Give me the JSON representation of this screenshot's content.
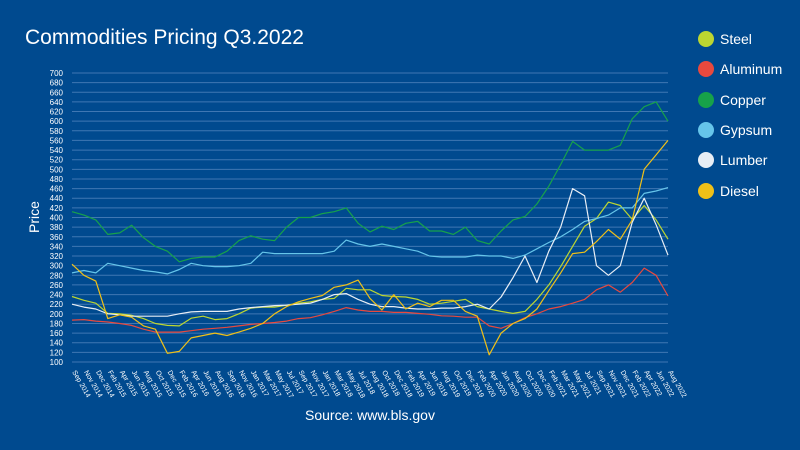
{
  "chart_data": {
    "type": "line",
    "title": "Commodities Pricing Q3.2022",
    "source": "Source: www.bls.gov",
    "ylabel": "Price",
    "xlabel": "",
    "ylim": [
      100,
      700
    ],
    "yticks": [
      100,
      120,
      140,
      160,
      180,
      200,
      220,
      240,
      260,
      280,
      300,
      320,
      340,
      360,
      380,
      400,
      420,
      440,
      460,
      480,
      500,
      520,
      540,
      560,
      580,
      600,
      620,
      640,
      660,
      680,
      700
    ],
    "grid": true,
    "legend_position": "right",
    "x": [
      "Sep 2014",
      "Nov 2014",
      "Dec 2014",
      "Feb 2015",
      "Apr 2015",
      "Jun 2015",
      "Aug 2015",
      "Oct 2015",
      "Dec 2015",
      "Feb 2016",
      "Apr 2016",
      "Jun 2016",
      "Aug 2016",
      "Sep 2016",
      "Nov 2016",
      "Jan 2017",
      "Mar 2017",
      "May 2017",
      "Jul 2017",
      "Sep 2017",
      "Nov 2017",
      "Jan 2018",
      "Mar 2018",
      "May 2018",
      "Jul 2018",
      "Aug 2018",
      "Oct 2018",
      "Dec 2018",
      "Feb 2019",
      "Apr 2019",
      "Jun 2019",
      "Aug 2019",
      "Oct 2019",
      "Dec 2019",
      "Feb 2020",
      "Apr 2020",
      "Jun 2020",
      "Aug 2020",
      "Oct 2020",
      "Dec 2020",
      "Feb 2021",
      "Mar 2021",
      "May 2021",
      "Jul 2021",
      "Sep 2021",
      "Nov 2021",
      "Dec 2021",
      "Feb 2022",
      "Apr 2022",
      "Jun 2022",
      "Aug 2022"
    ],
    "series": [
      {
        "name": "Steel",
        "color": "#bcd631",
        "values": [
          236,
          228,
          222,
          201,
          200,
          197,
          190,
          180,
          176,
          175,
          191,
          195,
          188,
          190,
          200,
          212,
          214,
          214,
          218,
          222,
          225,
          230,
          232,
          253,
          250,
          250,
          238,
          236,
          235,
          230,
          220,
          222,
          226,
          230,
          215,
          210,
          205,
          201,
          205,
          230,
          260,
          298,
          340,
          382,
          398,
          432,
          425,
          396,
          425,
          395,
          355
        ]
      },
      {
        "name": "Aluminum",
        "color": "#e8493e",
        "values": [
          187,
          188,
          185,
          183,
          180,
          176,
          168,
          162,
          162,
          162,
          165,
          168,
          170,
          172,
          175,
          178,
          180,
          182,
          185,
          190,
          192,
          198,
          205,
          213,
          208,
          205,
          205,
          203,
          203,
          201,
          199,
          196,
          195,
          193,
          193,
          175,
          170,
          180,
          192,
          200,
          210,
          215,
          222,
          230,
          250,
          260,
          245,
          265,
          295,
          280,
          237
        ]
      },
      {
        "name": "Copper",
        "color": "#17a24a",
        "values": [
          412,
          405,
          395,
          365,
          368,
          384,
          358,
          340,
          330,
          308,
          315,
          318,
          318,
          330,
          352,
          362,
          355,
          352,
          380,
          400,
          400,
          408,
          412,
          420,
          388,
          370,
          382,
          375,
          388,
          392,
          372,
          372,
          365,
          380,
          352,
          345,
          372,
          395,
          402,
          428,
          465,
          510,
          558,
          540,
          540,
          540,
          550,
          605,
          630,
          640,
          600
        ]
      },
      {
        "name": "Gypsum",
        "color": "#66c5ea",
        "values": [
          285,
          290,
          285,
          305,
          300,
          295,
          290,
          287,
          283,
          292,
          305,
          300,
          298,
          298,
          300,
          305,
          328,
          325,
          325,
          325,
          325,
          325,
          330,
          353,
          345,
          340,
          345,
          340,
          335,
          330,
          320,
          318,
          318,
          318,
          322,
          320,
          320,
          315,
          322,
          335,
          348,
          360,
          375,
          392,
          398,
          405,
          420,
          420,
          450,
          455,
          462
        ]
      },
      {
        "name": "Lumber",
        "color": "#e8eef5",
        "values": [
          220,
          214,
          210,
          200,
          198,
          195,
          195,
          195,
          195,
          200,
          204,
          205,
          205,
          205,
          210,
          213,
          215,
          217,
          218,
          220,
          222,
          230,
          240,
          242,
          230,
          220,
          215,
          215,
          212,
          210,
          210,
          212,
          212,
          215,
          220,
          210,
          235,
          275,
          320,
          265,
          330,
          380,
          460,
          445,
          300,
          280,
          300,
          390,
          440,
          385,
          322
        ]
      },
      {
        "name": "Diesel",
        "color": "#f0c018",
        "values": [
          303,
          280,
          268,
          190,
          198,
          193,
          175,
          168,
          118,
          122,
          150,
          155,
          160,
          155,
          162,
          170,
          180,
          200,
          215,
          225,
          232,
          238,
          255,
          260,
          270,
          232,
          208,
          240,
          210,
          222,
          215,
          228,
          228,
          205,
          195,
          115,
          160,
          180,
          190,
          210,
          248,
          285,
          325,
          328,
          350,
          375,
          355,
          395,
          500,
          530,
          560
        ]
      }
    ]
  }
}
